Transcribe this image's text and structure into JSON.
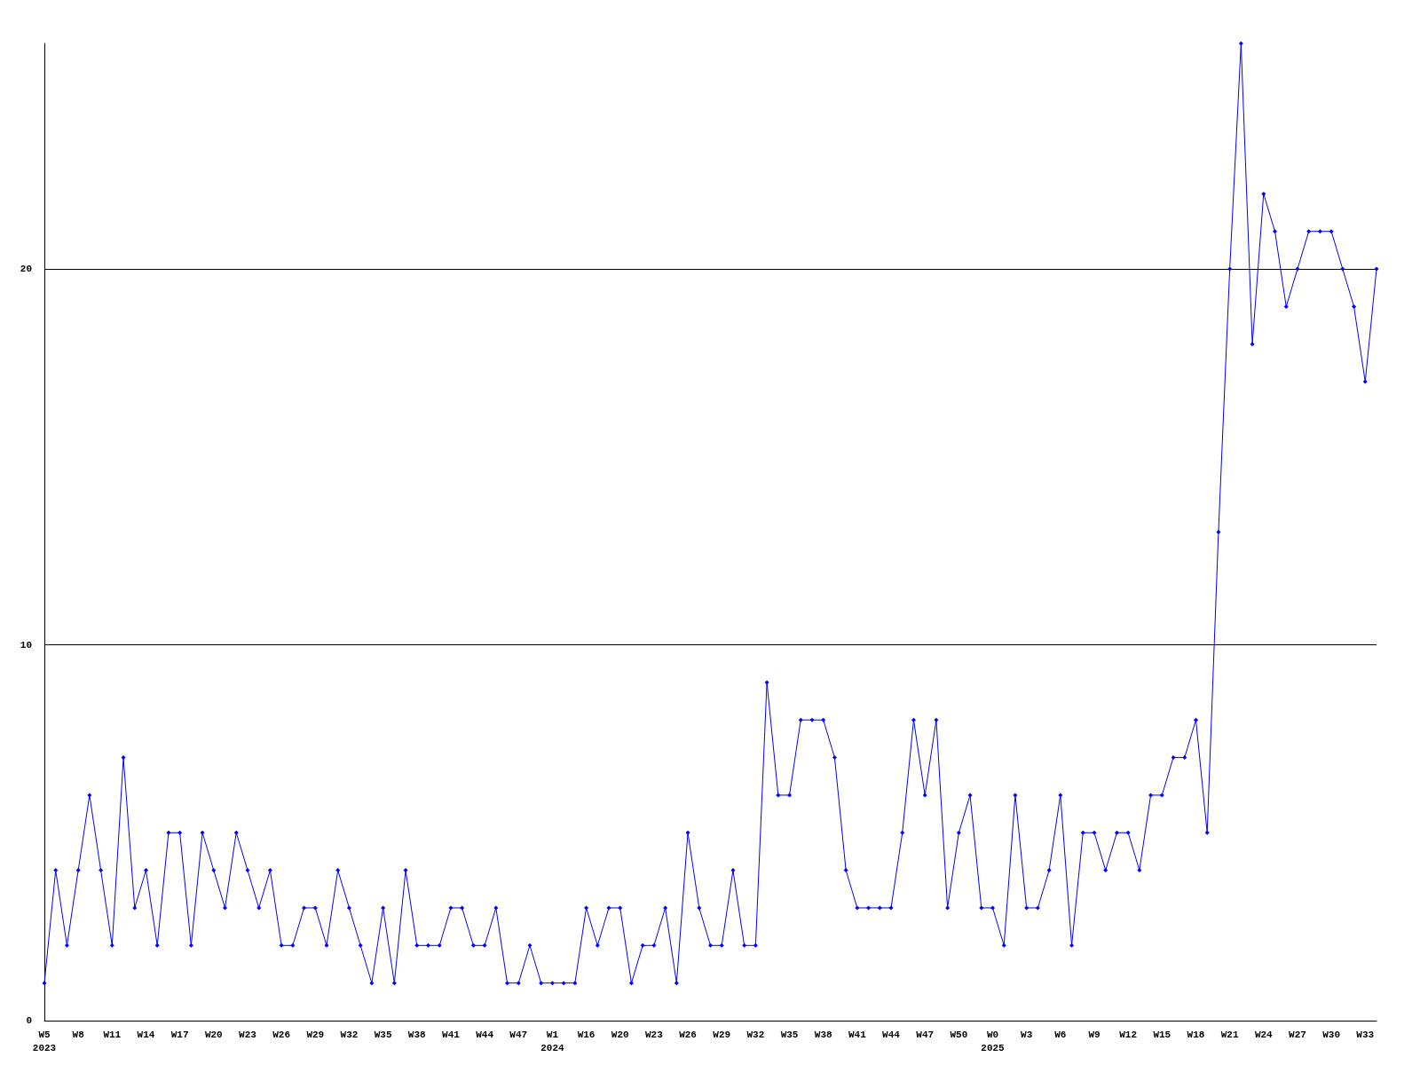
{
  "chart_data": {
    "type": "line",
    "categories": [
      "W5\n2023",
      null,
      null,
      "W8",
      null,
      null,
      "W11",
      null,
      null,
      "W14",
      null,
      null,
      "W17",
      null,
      null,
      "W20",
      null,
      null,
      "W23",
      null,
      null,
      "W26",
      null,
      null,
      "W29",
      null,
      null,
      "W32",
      null,
      null,
      "W35",
      null,
      null,
      "W38",
      null,
      null,
      "W41",
      null,
      null,
      "W44",
      null,
      null,
      "W47",
      null,
      null,
      "W1\n2024",
      null,
      null,
      "W16",
      null,
      null,
      "W20",
      null,
      null,
      "W23",
      null,
      null,
      "W26",
      null,
      null,
      "W29",
      null,
      null,
      "W32",
      null,
      null,
      "W35",
      null,
      null,
      "W38",
      null,
      null,
      "W41",
      null,
      null,
      "W44",
      null,
      null,
      "W47",
      null,
      null,
      "W50",
      null,
      null,
      "W0\n2025",
      null,
      null,
      "W3",
      null,
      null,
      "W6",
      null,
      null,
      "W9",
      null,
      null,
      "W12",
      null,
      null,
      "W15",
      null,
      null,
      "W18",
      null,
      null,
      "W21",
      null,
      null,
      "W24",
      null,
      null,
      "W27",
      null,
      null,
      "W30",
      null,
      null,
      "W33",
      null
    ],
    "series": [
      {
        "color": "#0000ff",
        "values": [
          1,
          4,
          2,
          4,
          6,
          4,
          2,
          7,
          3,
          4,
          2,
          5,
          5,
          2,
          5,
          4,
          3,
          5,
          4,
          3,
          4,
          2,
          2,
          3,
          3,
          2,
          4,
          3,
          2,
          1,
          3,
          1,
          4,
          2,
          2,
          2,
          3,
          3,
          2,
          2,
          3,
          1,
          1,
          2,
          1,
          1,
          1,
          1,
          3,
          2,
          3,
          3,
          1,
          2,
          2,
          3,
          1,
          5,
          3,
          2,
          2,
          4,
          2,
          2,
          9,
          6,
          6,
          8,
          8,
          8,
          7,
          4,
          3,
          3,
          3,
          3,
          5,
          8,
          6,
          8,
          3,
          5,
          6,
          3,
          3,
          2,
          6,
          3,
          3,
          4,
          6,
          2,
          5,
          5,
          4,
          5,
          5,
          4,
          6,
          6,
          7,
          7,
          8,
          5,
          13,
          20,
          26,
          18,
          22,
          21,
          19,
          20,
          21,
          21,
          21,
          20,
          19,
          17,
          20
        ]
      }
    ],
    "ylim": [
      0,
      26
    ],
    "yticks": [
      0,
      10,
      20
    ],
    "grid": "y",
    "marker": "diamond",
    "line_style": "solid"
  }
}
